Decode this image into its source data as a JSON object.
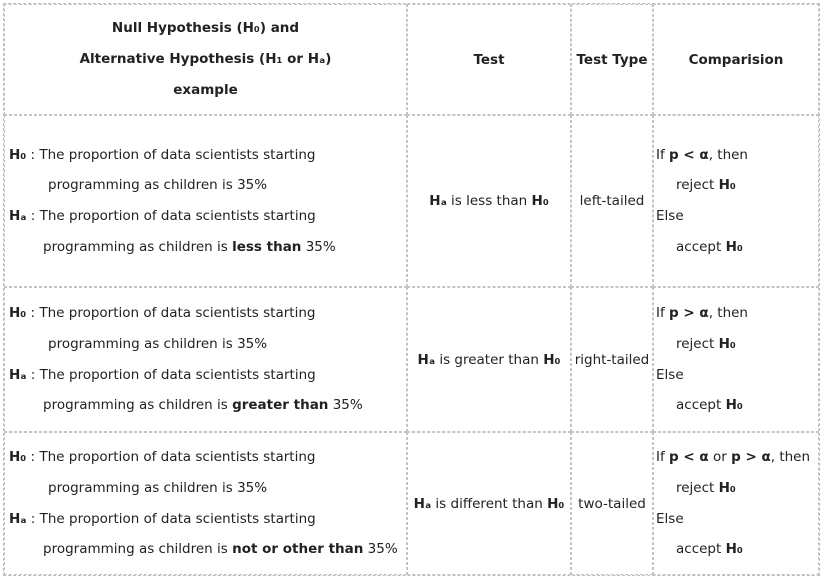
{
  "header": {
    "col1_line1": "Null Hypothesis (H₀) and",
    "col1_line2": "Alternative Hypothesis (H₁ or Hₐ)",
    "col1_line3": "example",
    "col2": "Test",
    "col3": "Test Type",
    "col4": "Comparision"
  },
  "rows": [
    {
      "h0_label": "H₀",
      "h0_text1": " : The proportion of data scientists starting",
      "h0_text2": "programming as children is 35%",
      "ha_label": "Hₐ",
      "ha_text1": " : The proportion of data scientists starting",
      "ha_text2_pre": "programming as children is ",
      "ha_text2_bold": "less than",
      "ha_text2_post": " 35%",
      "test_ha": "Hₐ",
      "test_mid": " is less than ",
      "test_h0": "H₀",
      "type": "left-tailed",
      "cmp_if": "If ",
      "cmp_cond": "p < α",
      "cmp_then": ", then",
      "cmp_reject": "reject ",
      "cmp_reject_h": "H₀",
      "cmp_else": "Else",
      "cmp_accept": "accept ",
      "cmp_accept_h": "H₀"
    },
    {
      "h0_label": "H₀",
      "h0_text1": " : The proportion of data scientists starting",
      "h0_text2": "programming as children is 35%",
      "ha_label": "Hₐ",
      "ha_text1": " : The proportion of data scientists starting",
      "ha_text2_pre": "programming as children is ",
      "ha_text2_bold": "greater than",
      "ha_text2_post": " 35%",
      "test_ha": "Hₐ",
      "test_mid": " is greater than ",
      "test_h0": "H₀",
      "type": "right-tailed",
      "cmp_if": "If ",
      "cmp_cond": "p > α",
      "cmp_then": ", then",
      "cmp_reject": "reject ",
      "cmp_reject_h": "H₀",
      "cmp_else": "Else",
      "cmp_accept": "accept ",
      "cmp_accept_h": "H₀"
    },
    {
      "h0_label": "H₀",
      "h0_text1": " : The proportion of data scientists starting",
      "h0_text2": "programming as children is 35%",
      "ha_label": "Hₐ",
      "ha_text1": " : The proportion of data scientists starting",
      "ha_text2_pre": "programming as children is ",
      "ha_text2_bold": "not or other than",
      "ha_text2_post": " 35%",
      "test_ha": "Hₐ",
      "test_mid": " is different than ",
      "test_h0": "H₀",
      "type": "two-tailed",
      "cmp_if": "If ",
      "cmp_cond": "p < α",
      "cmp_or": " or ",
      "cmp_cond2": "p > α",
      "cmp_then": ", then",
      "cmp_reject": "reject ",
      "cmp_reject_h": "H₀",
      "cmp_else": "Else",
      "cmp_accept": "accept ",
      "cmp_accept_h": "H₀"
    }
  ]
}
